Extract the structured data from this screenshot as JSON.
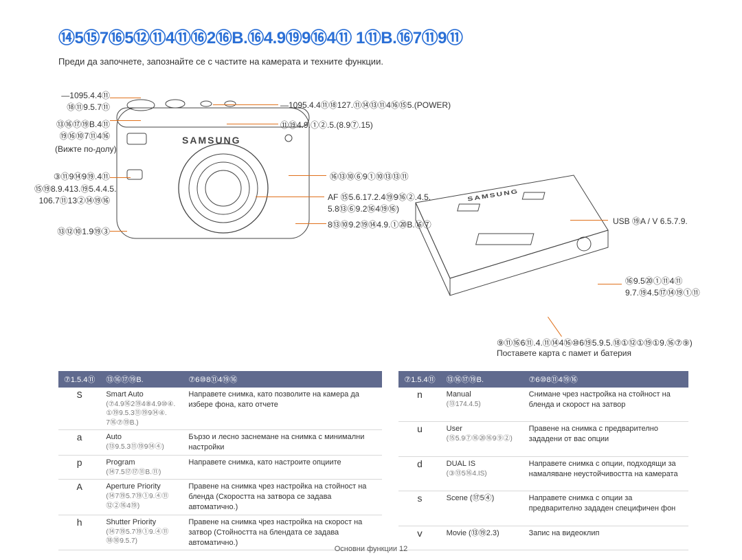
{
  "title": "⑭5⑮7⑯5⑫⑪4⑪⑯2⑯B.⑯4.9⑲9⑯4⑪ 1⑪B.⑯7⑪9⑪",
  "intro": "Преди да започнете, запознайте се с частите на камерата и техните функции.",
  "labels_left": {
    "top1": "—1095.4.4⑪",
    "top1b": "⑱⑪9.5.7⑪",
    "top2": "⑬⑯⑰⑲B.4⑪",
    "top2b": "⑲⑯⑩7⑪4⑯",
    "belowlink": "(Вижте по-долу)",
    "mid1": "③⑪9⑭9⑲.4⑪",
    "mid2": "⑮⑲8.9.413.⑲5.4.4.5.",
    "mid3": "106.7⑪13②⑭⑲⑯",
    "bottom": "⑬⑫⑩1.9⑲③"
  },
  "labels_center": {
    "c1": "—1095.4.4⑪⑱127.⑪⑭⑬⑪4⑯⑮5.(POWER)",
    "c2": "⑪⑲4.9.①②.5.(8.9⑦.15)",
    "c3": "⑯⑬⑩⑥9①⑩⑬⑬⑪",
    "c4": "AF ⑮5.6.17.2.4⑲9⑯②.4.5.",
    "c4b": "5.8⑬⑥9.2⑯4⑲⑯)",
    "c5": "8⑬⑩9.2⑲⑭4.9.①⑳B.⑯⑦"
  },
  "labels_right": {
    "r1": "USB ⑲A / V 6.5.7.9.",
    "r2": "⑯9.5⑳①⑪4⑪",
    "r2b": "9.7.⑲4.5⑰⑭⑲①⑪",
    "r3": "⑨⑪⑯6⑪.4.⑪⑭4⑯⑩6⑲5.9.5.⑱①⑫①⑲①9.⑯⑦⑨)",
    "r3b": "Поставете карта с памет и батерия"
  },
  "logo": "SAMSUNG",
  "table_headers": [
    "⑦1.5.4⑪",
    "⑬⑯⑰⑲B.",
    "⑦6⑩8⑪4⑲⑯"
  ],
  "table_left": [
    {
      "icon": "S",
      "name": "Smart Auto",
      "sub": "(⑦4.9⑯2⑲4⑧4.9⑩④.\n①⑲9.5.3⑪⑲9⑭④.\n7⑯⑦⑲B.)",
      "desc": "Направете снимка, като позволите на камера да избере фона, като отчете"
    },
    {
      "icon": "a",
      "name": "Auto",
      "sub": "(⑬9.5.3⑪⑲9⑭④)",
      "desc": "Бързо и лесно заснемане на снимка с минимални настройки"
    },
    {
      "icon": "p",
      "name": "Program",
      "sub": "(⑭7.5⑰⑰⑪B.⑪)",
      "desc": "Направете снимка, като настроите опциите"
    },
    {
      "icon": "A",
      "name": "Aperture Priority",
      "sub": "(⑭7⑲5.7⑲①9.④⑪ ⑫②⑯4⑲)",
      "desc": "Правене на снимка чрез настройка на стойност на бленда (Скоростта на затвора се задава автоматично.)"
    },
    {
      "icon": "h",
      "name": "Shutter Priority",
      "sub": "(⑭7⑲5.7⑲①9.④⑪ ⑱⑩9.5.7)",
      "desc": "Правене на снимка чрез настройка на скорост на затвор (Стойността на блендата се задава автоматично.)"
    }
  ],
  "table_right": [
    {
      "icon": "n",
      "name": "Manual",
      "sub": "(⑬174.4.5)",
      "desc": "Снимане чрез настройка на стойност на бленда и скорост на затвор"
    },
    {
      "icon": "u",
      "name": "User",
      "sub": "(⑮5.9⑦⑯⑳⑯9⑨②)",
      "desc": "Правене на снимка с предварително зададени от вас опции"
    },
    {
      "icon": "d",
      "name": "DUAL IS",
      "sub": "(③⑬5⑯4.IS)",
      "desc": "Направете снимка с опции, подходящи за намаляване неустойчивостта на камерата"
    },
    {
      "icon": "s",
      "name": "Scene (⑰5④)",
      "sub": "",
      "desc": "Направете снимка с опции за предварително зададен специфичен фон"
    },
    {
      "icon": "v",
      "name": "Movie (⑬⑲2.3)",
      "sub": "",
      "desc": "Запис на видеоклип"
    }
  ],
  "footer": "Основни функции  12",
  "colors": {
    "title": "#2a6fd6",
    "leader": "#e0701a",
    "header_bg": "#606a8e",
    "header_fg": "#ffffff"
  }
}
